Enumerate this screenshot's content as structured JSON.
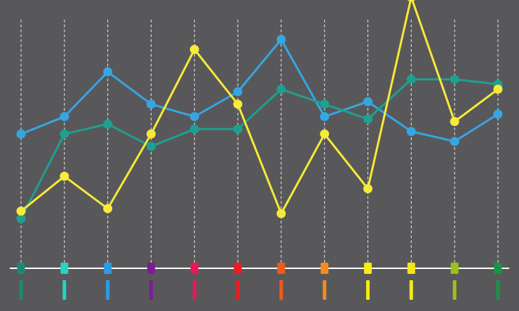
{
  "colors": {
    "background": "#58585a",
    "grid": "#e8e8e8",
    "baseline": "#ffffff"
  },
  "chart_data": {
    "type": "line",
    "grid": {
      "vertical_dashed": true,
      "horizontal": false
    },
    "categories": [
      "",
      "",
      "",
      "",
      "",
      "",
      "",
      "",
      "",
      "",
      "",
      ""
    ],
    "category_colors": [
      "#1a8a76",
      "#27d3c3",
      "#2d9be3",
      "#7a1e92",
      "#ee1457",
      "#ee1b22",
      "#f05a1a",
      "#f78a1e",
      "#f8ea12",
      "#f5e619",
      "#9cc11c",
      "#169447"
    ],
    "ylim": [
      0,
      100
    ],
    "series": [
      {
        "color": "#36a6e3",
        "values": [
          54,
          61,
          79,
          66,
          61,
          71,
          92,
          61,
          67,
          55,
          51,
          62
        ]
      },
      {
        "color": "#1ea08f",
        "values": [
          20,
          54,
          58,
          49,
          56,
          56,
          72,
          66,
          60,
          76,
          76,
          74
        ]
      },
      {
        "color": "#f7ea38",
        "values": [
          23,
          37,
          24,
          54,
          88,
          66,
          22,
          54,
          32,
          109,
          59,
          72
        ]
      }
    ]
  }
}
